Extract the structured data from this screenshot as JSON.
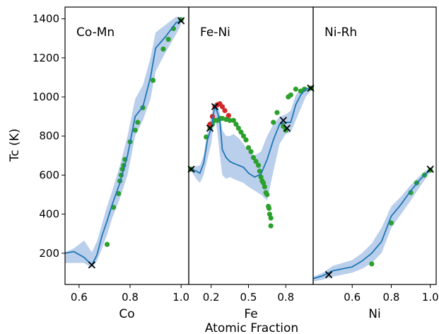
{
  "chart_data": {
    "type": "line",
    "shared_xlabel": "Atomic Fraction",
    "ylabel": "Tc (K)",
    "ylim": [
      40,
      1460
    ],
    "yticks": [
      200,
      400,
      600,
      800,
      1000,
      1200,
      1400
    ],
    "colors": {
      "line": "#1f77b4",
      "band": "#aec7e8",
      "green": "#2ca02c",
      "red": "#d62728",
      "marker": "#000000"
    },
    "panels": [
      {
        "title": "Co-Mn",
        "xlabel": "Co",
        "xlim": [
          0.545,
          1.03
        ],
        "xticks": [
          0.6,
          0.8,
          1.0
        ],
        "xtick_labels": [
          "0.6",
          "0.8",
          "1.0"
        ],
        "line": [
          [
            0.545,
            200
          ],
          [
            0.58,
            208
          ],
          [
            0.62,
            178
          ],
          [
            0.65,
            140
          ],
          [
            0.67,
            190
          ],
          [
            0.69,
            290
          ],
          [
            0.71,
            365
          ],
          [
            0.73,
            450
          ],
          [
            0.76,
            560
          ],
          [
            0.79,
            700
          ],
          [
            0.82,
            900
          ],
          [
            0.85,
            950
          ],
          [
            0.88,
            1100
          ],
          [
            0.9,
            1250
          ],
          [
            0.94,
            1310
          ],
          [
            0.98,
            1380
          ],
          [
            1.0,
            1390
          ]
        ],
        "band_upper": [
          [
            0.545,
            205
          ],
          [
            0.58,
            225
          ],
          [
            0.62,
            265
          ],
          [
            0.65,
            205
          ],
          [
            0.67,
            260
          ],
          [
            0.69,
            350
          ],
          [
            0.71,
            440
          ],
          [
            0.73,
            520
          ],
          [
            0.76,
            650
          ],
          [
            0.79,
            800
          ],
          [
            0.82,
            990
          ],
          [
            0.85,
            1060
          ],
          [
            0.88,
            1200
          ],
          [
            0.9,
            1330
          ],
          [
            0.94,
            1370
          ],
          [
            0.98,
            1410
          ],
          [
            1.0,
            1410
          ]
        ],
        "band_lower": [
          [
            1.0,
            1370
          ],
          [
            0.98,
            1320
          ],
          [
            0.94,
            1230
          ],
          [
            0.9,
            1130
          ],
          [
            0.88,
            990
          ],
          [
            0.85,
            880
          ],
          [
            0.82,
            800
          ],
          [
            0.79,
            600
          ],
          [
            0.76,
            480
          ],
          [
            0.73,
            380
          ],
          [
            0.71,
            295
          ],
          [
            0.69,
            225
          ],
          [
            0.67,
            160
          ],
          [
            0.65,
            125
          ],
          [
            0.62,
            150
          ],
          [
            0.58,
            150
          ],
          [
            0.545,
            150
          ]
        ],
        "green_points": [
          [
            0.71,
            245
          ],
          [
            0.735,
            435
          ],
          [
            0.755,
            505
          ],
          [
            0.76,
            570
          ],
          [
            0.765,
            600
          ],
          [
            0.77,
            630
          ],
          [
            0.775,
            650
          ],
          [
            0.78,
            680
          ],
          [
            0.8,
            770
          ],
          [
            0.82,
            830
          ],
          [
            0.83,
            870
          ],
          [
            0.85,
            945
          ],
          [
            0.89,
            1085
          ],
          [
            0.93,
            1245
          ],
          [
            0.95,
            1295
          ],
          [
            0.97,
            1350
          ],
          [
            1.0,
            1395
          ]
        ],
        "red_points": [],
        "x_markers": [
          [
            0.65,
            140
          ],
          [
            1.0,
            1390
          ]
        ]
      },
      {
        "title": "Fe-Ni",
        "xlabel": "Fe",
        "xlim": [
          0.02,
          1.02
        ],
        "xticks": [
          0.2,
          0.5,
          0.8
        ],
        "xtick_labels": [
          "0.2",
          "0.5",
          "0.8"
        ],
        "line": [
          [
            0.04,
            630
          ],
          [
            0.08,
            620
          ],
          [
            0.11,
            610
          ],
          [
            0.14,
            660
          ],
          [
            0.17,
            780
          ],
          [
            0.2,
            840
          ],
          [
            0.23,
            955
          ],
          [
            0.25,
            920
          ],
          [
            0.27,
            880
          ],
          [
            0.29,
            730
          ],
          [
            0.32,
            690
          ],
          [
            0.35,
            670
          ],
          [
            0.38,
            660
          ],
          [
            0.42,
            650
          ],
          [
            0.46,
            640
          ],
          [
            0.5,
            610
          ],
          [
            0.55,
            590
          ],
          [
            0.6,
            605
          ],
          [
            0.65,
            680
          ],
          [
            0.7,
            780
          ],
          [
            0.75,
            860
          ],
          [
            0.8,
            870
          ],
          [
            0.84,
            870
          ],
          [
            0.88,
            960
          ],
          [
            0.92,
            1010
          ],
          [
            0.96,
            1040
          ],
          [
            1.0,
            1045
          ]
        ],
        "band_upper": [
          [
            0.04,
            640
          ],
          [
            0.08,
            645
          ],
          [
            0.11,
            650
          ],
          [
            0.14,
            700
          ],
          [
            0.17,
            820
          ],
          [
            0.2,
            900
          ],
          [
            0.23,
            970
          ],
          [
            0.25,
            960
          ],
          [
            0.27,
            920
          ],
          [
            0.29,
            830
          ],
          [
            0.32,
            800
          ],
          [
            0.35,
            800
          ],
          [
            0.38,
            810
          ],
          [
            0.42,
            790
          ],
          [
            0.46,
            760
          ],
          [
            0.5,
            720
          ],
          [
            0.55,
            700
          ],
          [
            0.6,
            720
          ],
          [
            0.65,
            800
          ],
          [
            0.7,
            860
          ],
          [
            0.75,
            900
          ],
          [
            0.8,
            910
          ],
          [
            0.84,
            930
          ],
          [
            0.88,
            1010
          ],
          [
            0.92,
            1040
          ],
          [
            0.96,
            1050
          ],
          [
            1.0,
            1050
          ]
        ],
        "band_lower": [
          [
            1.0,
            1030
          ],
          [
            0.96,
            1000
          ],
          [
            0.92,
            940
          ],
          [
            0.88,
            880
          ],
          [
            0.84,
            820
          ],
          [
            0.8,
            810
          ],
          [
            0.75,
            760
          ],
          [
            0.7,
            620
          ],
          [
            0.65,
            470
          ],
          [
            0.6,
            500
          ],
          [
            0.55,
            520
          ],
          [
            0.5,
            540
          ],
          [
            0.46,
            560
          ],
          [
            0.42,
            570
          ],
          [
            0.38,
            580
          ],
          [
            0.35,
            590
          ],
          [
            0.32,
            580
          ],
          [
            0.29,
            600
          ],
          [
            0.27,
            700
          ],
          [
            0.25,
            820
          ],
          [
            0.23,
            900
          ],
          [
            0.2,
            760
          ],
          [
            0.17,
            680
          ],
          [
            0.14,
            600
          ],
          [
            0.11,
            560
          ],
          [
            0.08,
            580
          ],
          [
            0.04,
            620
          ]
        ],
        "green_points": [
          [
            0.04,
            630
          ],
          [
            0.16,
            795
          ],
          [
            0.19,
            840
          ],
          [
            0.21,
            860
          ],
          [
            0.23,
            880
          ],
          [
            0.25,
            880
          ],
          [
            0.27,
            890
          ],
          [
            0.29,
            890
          ],
          [
            0.32,
            885
          ],
          [
            0.35,
            880
          ],
          [
            0.38,
            880
          ],
          [
            0.4,
            860
          ],
          [
            0.42,
            840
          ],
          [
            0.44,
            820
          ],
          [
            0.46,
            800
          ],
          [
            0.48,
            780
          ],
          [
            0.5,
            740
          ],
          [
            0.52,
            720
          ],
          [
            0.54,
            690
          ],
          [
            0.56,
            670
          ],
          [
            0.58,
            650
          ],
          [
            0.59,
            620
          ],
          [
            0.6,
            590
          ],
          [
            0.61,
            570
          ],
          [
            0.62,
            560
          ],
          [
            0.63,
            540
          ],
          [
            0.64,
            510
          ],
          [
            0.65,
            500
          ],
          [
            0.66,
            440
          ],
          [
            0.665,
            430
          ],
          [
            0.67,
            400
          ],
          [
            0.68,
            380
          ],
          [
            0.68,
            340
          ],
          [
            0.7,
            870
          ],
          [
            0.73,
            920
          ],
          [
            0.78,
            850
          ],
          [
            0.8,
            830
          ],
          [
            0.82,
            1000
          ],
          [
            0.84,
            1010
          ],
          [
            0.88,
            1040
          ],
          [
            0.92,
            1030
          ],
          [
            0.95,
            1040
          ],
          [
            1.0,
            1045
          ]
        ],
        "red_points": [
          [
            0.19,
            860
          ],
          [
            0.21,
            900
          ],
          [
            0.23,
            950
          ],
          [
            0.25,
            960
          ],
          [
            0.27,
            965
          ],
          [
            0.29,
            950
          ],
          [
            0.31,
            930
          ],
          [
            0.34,
            905
          ]
        ],
        "x_markers": [
          [
            0.04,
            630
          ],
          [
            0.19,
            840
          ],
          [
            0.23,
            950
          ],
          [
            0.78,
            880
          ],
          [
            0.81,
            840
          ],
          [
            1.0,
            1045
          ]
        ]
      },
      {
        "title": "Ni-Rh",
        "xlabel": "Ni",
        "xlim": [
          0.4,
          1.03
        ],
        "xticks": [
          0.6,
          0.8,
          1.0
        ],
        "xtick_labels": [
          "0.6",
          "0.8",
          "1.0"
        ],
        "line": [
          [
            0.4,
            70
          ],
          [
            0.45,
            85
          ],
          [
            0.5,
            110
          ],
          [
            0.55,
            120
          ],
          [
            0.6,
            130
          ],
          [
            0.65,
            160
          ],
          [
            0.7,
            200
          ],
          [
            0.75,
            260
          ],
          [
            0.8,
            390
          ],
          [
            0.85,
            450
          ],
          [
            0.9,
            520
          ],
          [
            0.95,
            580
          ],
          [
            1.0,
            630
          ]
        ],
        "band_upper": [
          [
            0.4,
            80
          ],
          [
            0.45,
            100
          ],
          [
            0.5,
            135
          ],
          [
            0.55,
            150
          ],
          [
            0.6,
            165
          ],
          [
            0.65,
            200
          ],
          [
            0.7,
            250
          ],
          [
            0.75,
            330
          ],
          [
            0.8,
            440
          ],
          [
            0.85,
            490
          ],
          [
            0.9,
            550
          ],
          [
            0.95,
            600
          ],
          [
            1.0,
            640
          ]
        ],
        "band_lower": [
          [
            1.0,
            615
          ],
          [
            0.95,
            545
          ],
          [
            0.9,
            470
          ],
          [
            0.85,
            400
          ],
          [
            0.8,
            330
          ],
          [
            0.75,
            200
          ],
          [
            0.7,
            150
          ],
          [
            0.65,
            120
          ],
          [
            0.6,
            100
          ],
          [
            0.55,
            90
          ],
          [
            0.5,
            80
          ],
          [
            0.45,
            65
          ],
          [
            0.4,
            55
          ]
        ],
        "green_points": [
          [
            0.7,
            145
          ],
          [
            0.8,
            355
          ],
          [
            0.9,
            510
          ],
          [
            0.93,
            560
          ],
          [
            0.97,
            600
          ],
          [
            1.0,
            625
          ]
        ],
        "red_points": [],
        "x_markers": [
          [
            0.48,
            90
          ],
          [
            1.0,
            630
          ]
        ]
      }
    ]
  }
}
